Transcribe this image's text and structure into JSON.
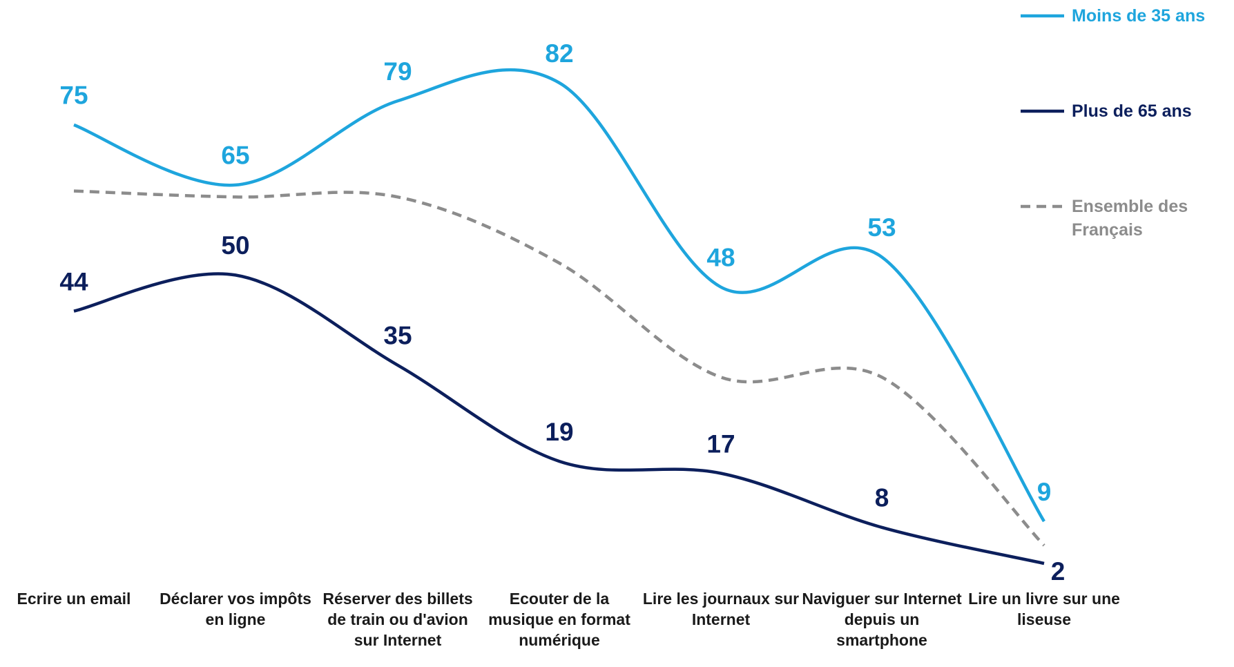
{
  "chart_data": {
    "type": "line",
    "categories": [
      "Ecrire un email",
      "Déclarer vos impôts en ligne",
      "Réserver des billets de train ou d'avion sur Internet",
      "Ecouter de la musique en format numérique",
      "Lire les journaux sur Internet",
      "Naviguer sur Internet depuis un smartphone",
      "Lire un livre sur une liseuse"
    ],
    "series": [
      {
        "name": "Moins de 35 ans",
        "color": "#1ea5dd",
        "dashed": false,
        "labels": true,
        "values": [
          75,
          65,
          79,
          82,
          48,
          53,
          9
        ]
      },
      {
        "name": "Plus de 65 ans",
        "color": "#0c1f5c",
        "dashed": false,
        "labels": true,
        "values": [
          44,
          50,
          35,
          19,
          17,
          8,
          2
        ]
      },
      {
        "name": "Ensemble des Français",
        "color": "#8c8c8c",
        "dashed": true,
        "labels": false,
        "values": [
          64,
          63,
          63,
          52,
          33,
          33,
          5
        ]
      }
    ],
    "legend": "top-right"
  }
}
